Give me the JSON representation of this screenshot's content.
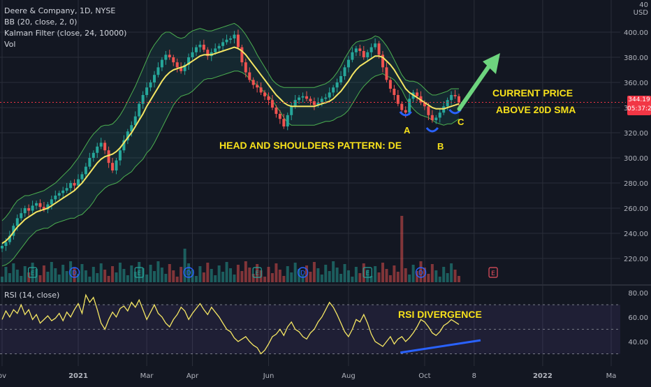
{
  "legend": {
    "symbol": "Deere & Company, 1D, NYSE",
    "bb": "BB (20, close, 2, 0)",
    "kalman": "Kalman Filter (close, 24, 10000)",
    "vol": "Vol"
  },
  "rsi_legend": "RSI (14, close)",
  "price_tag": {
    "value": "344.19",
    "countdown": "05:37:22"
  },
  "scale_tag": {
    "line1": "40",
    "line2": "USD"
  },
  "annotations": {
    "current_price_1": "CURRENT PRICE",
    "current_price_2": "ABOVE 20D SMA",
    "hs_pattern": "HEAD AND SHOULDERS PATTERN: DE",
    "rsi_divergence": "RSI DIVERGENCE",
    "label_a": "A",
    "label_b": "B",
    "label_c": "C"
  },
  "colors": {
    "background": "#131722",
    "up": "#26a69a",
    "down": "#ef5350",
    "sma": "#f5e663",
    "bb_band": "#4caf50",
    "kalman": "#f06292",
    "rsi_line": "#f5e663",
    "annotation": "#f7e11b",
    "arrow": "#6dd47e",
    "divergence_line": "#2962ff",
    "earnings": "#e9515f",
    "dividend": "#2962ff",
    "price_line": "#f23645"
  },
  "chart_data": [
    {
      "type": "candlestick",
      "title": "Deere & Company, 1D, NYSE",
      "ylabel": "USD",
      "ylim": [
        200,
        420
      ],
      "y_ticks": [
        220,
        240,
        260,
        280,
        300,
        320,
        340,
        360,
        380,
        400
      ],
      "x_ticks": [
        "ov",
        "2021",
        "Mar",
        "Apr",
        "Jun",
        "Aug",
        "Oct",
        "8",
        "2022",
        "Ma"
      ],
      "current_price": 344.19,
      "series": [
        {
          "name": "Close",
          "values": [
            230,
            233,
            238,
            246,
            252,
            256,
            260,
            258,
            262,
            264,
            261,
            259,
            263,
            267,
            270,
            272,
            274,
            276,
            280,
            278,
            283,
            287,
            293,
            300,
            304,
            309,
            312,
            306,
            296,
            290,
            298,
            306,
            314,
            321,
            326,
            333,
            343,
            350,
            356,
            360,
            366,
            372,
            378,
            382,
            380,
            376,
            372,
            369,
            374,
            380,
            384,
            388,
            390,
            386,
            381,
            384,
            387,
            389,
            392,
            394,
            395,
            398,
            388,
            376,
            368,
            362,
            358,
            356,
            352,
            349,
            346,
            340,
            335,
            331,
            325,
            334,
            341,
            346,
            348,
            349,
            347,
            345,
            342,
            344,
            347,
            348,
            352,
            356,
            360,
            365,
            372,
            378,
            384,
            387,
            385,
            380,
            384,
            388,
            391,
            382,
            372,
            362,
            355,
            350,
            343,
            338,
            336,
            347,
            352,
            349,
            344,
            341,
            334,
            330,
            332,
            336,
            341,
            346,
            350,
            349,
            344
          ]
        },
        {
          "name": "Bollinger Upper",
          "values": [
            250,
            253,
            257,
            262,
            266,
            268,
            270,
            270,
            271,
            272,
            273,
            274,
            276,
            278,
            280,
            283,
            286,
            289,
            292,
            296,
            300,
            305,
            310,
            315,
            319,
            322,
            325,
            326,
            326,
            327,
            330,
            334,
            339,
            345,
            351,
            357,
            364,
            371,
            378,
            385,
            390,
            394,
            398,
            400,
            400,
            398,
            396,
            395,
            396,
            399,
            401,
            402,
            403,
            402,
            401,
            401,
            402,
            403,
            404,
            405,
            406,
            407,
            405,
            402,
            398,
            393,
            388,
            382,
            377,
            372,
            367,
            362,
            359,
            357,
            356,
            356,
            356,
            356,
            356,
            356,
            356,
            356,
            356,
            357,
            358,
            359,
            361,
            364,
            368,
            373,
            379,
            384,
            389,
            392,
            393,
            393,
            394,
            395,
            397,
            396,
            393,
            389,
            384,
            378,
            372,
            366,
            362,
            361,
            361,
            360,
            358,
            355,
            352,
            350,
            350,
            351,
            352,
            353,
            355,
            355,
            355
          ]
        },
        {
          "name": "SMA 20",
          "values": [
            232,
            234,
            237,
            241,
            245,
            248,
            251,
            253,
            255,
            257,
            258,
            259,
            260,
            262,
            264,
            266,
            268,
            270,
            272,
            274,
            277,
            280,
            284,
            288,
            292,
            296,
            299,
            301,
            302,
            303,
            305,
            308,
            312,
            316,
            320,
            325,
            330,
            335,
            341,
            346,
            351,
            356,
            361,
            365,
            368,
            370,
            371,
            372,
            373,
            375,
            377,
            379,
            381,
            382,
            382,
            382,
            383,
            384,
            385,
            386,
            387,
            388,
            387,
            385,
            382,
            378,
            374,
            370,
            366,
            362,
            358,
            354,
            350,
            347,
            344,
            342,
            341,
            341,
            341,
            341,
            341,
            341,
            341,
            342,
            343,
            344,
            345,
            347,
            350,
            353,
            357,
            361,
            366,
            370,
            373,
            375,
            377,
            379,
            381,
            381,
            380,
            377,
            374,
            370,
            365,
            360,
            355,
            352,
            350,
            348,
            346,
            344,
            342,
            340,
            339,
            339,
            339,
            340,
            341,
            342,
            343
          ]
        },
        {
          "name": "Bollinger Lower",
          "values": [
            214,
            215,
            217,
            220,
            224,
            228,
            232,
            236,
            239,
            242,
            243,
            244,
            244,
            246,
            248,
            249,
            250,
            251,
            252,
            252,
            254,
            255,
            258,
            261,
            265,
            270,
            273,
            276,
            278,
            279,
            280,
            282,
            285,
            287,
            289,
            293,
            296,
            299,
            304,
            307,
            312,
            318,
            324,
            330,
            336,
            342,
            346,
            349,
            350,
            351,
            353,
            356,
            359,
            362,
            363,
            363,
            364,
            365,
            366,
            367,
            368,
            369,
            369,
            368,
            366,
            363,
            360,
            358,
            355,
            352,
            349,
            346,
            341,
            337,
            332,
            328,
            326,
            326,
            326,
            326,
            326,
            326,
            326,
            327,
            328,
            329,
            329,
            330,
            332,
            333,
            335,
            338,
            343,
            348,
            353,
            357,
            360,
            363,
            365,
            366,
            367,
            365,
            364,
            362,
            358,
            354,
            348,
            343,
            339,
            336,
            334,
            333,
            332,
            330,
            328,
            327,
            326,
            327,
            327,
            329,
            331
          ]
        }
      ]
    },
    {
      "type": "line",
      "title": "RSI (14, close)",
      "ylim": [
        20,
        85
      ],
      "y_ticks": [
        40,
        60,
        80
      ],
      "series": [
        {
          "name": "RSI (14, close)",
          "values": [
            58,
            65,
            60,
            66,
            63,
            70,
            62,
            66,
            58,
            62,
            55,
            58,
            61,
            57,
            59,
            63,
            57,
            64,
            60,
            66,
            71,
            63,
            78,
            72,
            76,
            66,
            55,
            50,
            58,
            64,
            60,
            67,
            69,
            65,
            72,
            68,
            74,
            66,
            58,
            64,
            70,
            63,
            60,
            55,
            52,
            58,
            62,
            68,
            65,
            58,
            63,
            67,
            71,
            66,
            62,
            68,
            64,
            60,
            55,
            50,
            48,
            43,
            40,
            42,
            44,
            40,
            37,
            35,
            30,
            33,
            38,
            44,
            46,
            50,
            45,
            52,
            56,
            50,
            48,
            44,
            42,
            47,
            50,
            56,
            60,
            66,
            72,
            68,
            62,
            55,
            48,
            44,
            50,
            58,
            56,
            62,
            55,
            46,
            40,
            38,
            36,
            40,
            44,
            38,
            42,
            44,
            40,
            43,
            47,
            52,
            58,
            56,
            52,
            47,
            45,
            48,
            53,
            55,
            58,
            56,
            54
          ]
        }
      ]
    }
  ]
}
